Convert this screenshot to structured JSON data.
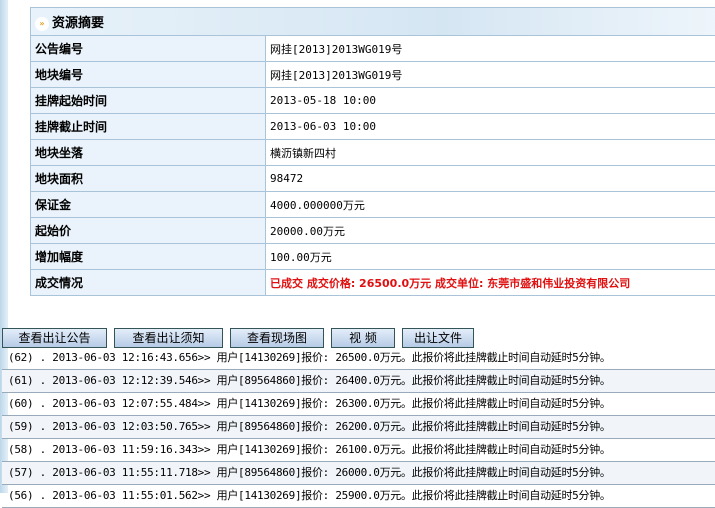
{
  "summary": {
    "title": "资源摘要",
    "rows": [
      {
        "label": "公告编号",
        "value": "网挂[2013]2013WG019号"
      },
      {
        "label": "地块编号",
        "value": "网挂[2013]2013WG019号"
      },
      {
        "label": "挂牌起始时间",
        "value": "2013-05-18 10:00"
      },
      {
        "label": "挂牌截止时间",
        "value": "2013-06-03 10:00"
      },
      {
        "label": "地块坐落",
        "value": "横沥镇新四村"
      },
      {
        "label": "地块面积",
        "value": "98472"
      },
      {
        "label": "保证金",
        "value": "4000.000000万元"
      },
      {
        "label": "起始价",
        "value": "20000.00万元"
      },
      {
        "label": "增加幅度",
        "value": "100.00万元"
      },
      {
        "label": "成交情况",
        "value": "已成交  成交价格: 26500.0万元  成交单位: 东莞市盛和伟业投资有限公司"
      }
    ]
  },
  "buttons": [
    "查看出让公告",
    "查看出让须知",
    "查看现场图",
    "视  频",
    "出让文件"
  ],
  "log": [
    "(62) . 2013-06-03 12:16:43.656>> 用户[14130269]报价: 26500.0万元。此报价将此挂牌截止时间自动延时5分钟。",
    "(61) . 2013-06-03 12:12:39.546>> 用户[89564860]报价: 26400.0万元。此报价将此挂牌截止时间自动延时5分钟。",
    "(60) . 2013-06-03 12:07:55.484>> 用户[14130269]报价: 26300.0万元。此报价将此挂牌截止时间自动延时5分钟。",
    "(59) . 2013-06-03 12:03:50.765>> 用户[89564860]报价: 26200.0万元。此报价将此挂牌截止时间自动延时5分钟。",
    "(58) . 2013-06-03 11:59:16.343>> 用户[14130269]报价: 26100.0万元。此报价将此挂牌截止时间自动延时5分钟。",
    "(57) . 2013-06-03 11:55:11.718>> 用户[89564860]报价: 26000.0万元。此报价将此挂牌截止时间自动延时5分钟。",
    "(56) . 2013-06-03 11:55:01.562>> 用户[14130269]报价: 25900.0万元。此报价将此挂牌截止时间自动延时5分钟。"
  ]
}
